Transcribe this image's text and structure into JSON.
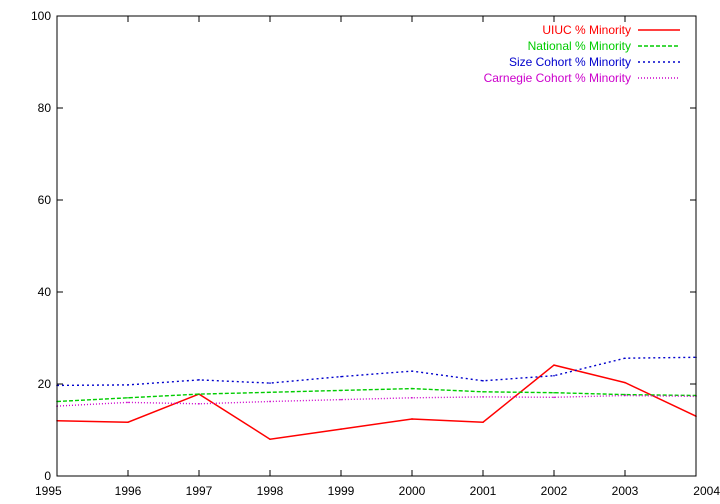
{
  "chart_data": {
    "type": "line",
    "title": "",
    "xlabel": "",
    "ylabel": "",
    "xlim": [
      1995,
      2004
    ],
    "ylim": [
      0,
      100
    ],
    "x_ticks": [
      "1995",
      "1996",
      "1997",
      "1998",
      "1999",
      "2000",
      "2001",
      "2002",
      "2003",
      "2004"
    ],
    "y_ticks": [
      "0",
      "20",
      "40",
      "60",
      "80",
      "100"
    ],
    "grid": false,
    "legend_position": "top-right",
    "x": [
      1995,
      1996,
      1997,
      1998,
      1999,
      2000,
      2001,
      2002,
      2003,
      2004
    ],
    "series": [
      {
        "name": "UIUC % Minority",
        "color": "#ff0000",
        "dash": "solid",
        "values": [
          12.0,
          11.7,
          17.8,
          8.0,
          10.2,
          12.4,
          11.7,
          24.1,
          20.3,
          13.0
        ]
      },
      {
        "name": "National % Minority",
        "color": "#00cc00",
        "dash": "dashed",
        "values": [
          16.2,
          17.0,
          17.8,
          18.2,
          18.6,
          19.0,
          18.3,
          18.1,
          17.7,
          17.5
        ]
      },
      {
        "name": "Size Cohort % Minority",
        "color": "#0000cc",
        "dash": "dotted",
        "values": [
          19.7,
          19.8,
          20.9,
          20.2,
          21.6,
          22.8,
          20.7,
          21.8,
          25.6,
          25.8
        ]
      },
      {
        "name": "Carnegie Cohort % Minority",
        "color": "#cc00cc",
        "dash": "fine-dotted",
        "values": [
          15.2,
          16.0,
          15.7,
          16.2,
          16.6,
          17.0,
          17.2,
          17.1,
          17.5,
          17.3
        ]
      }
    ]
  }
}
